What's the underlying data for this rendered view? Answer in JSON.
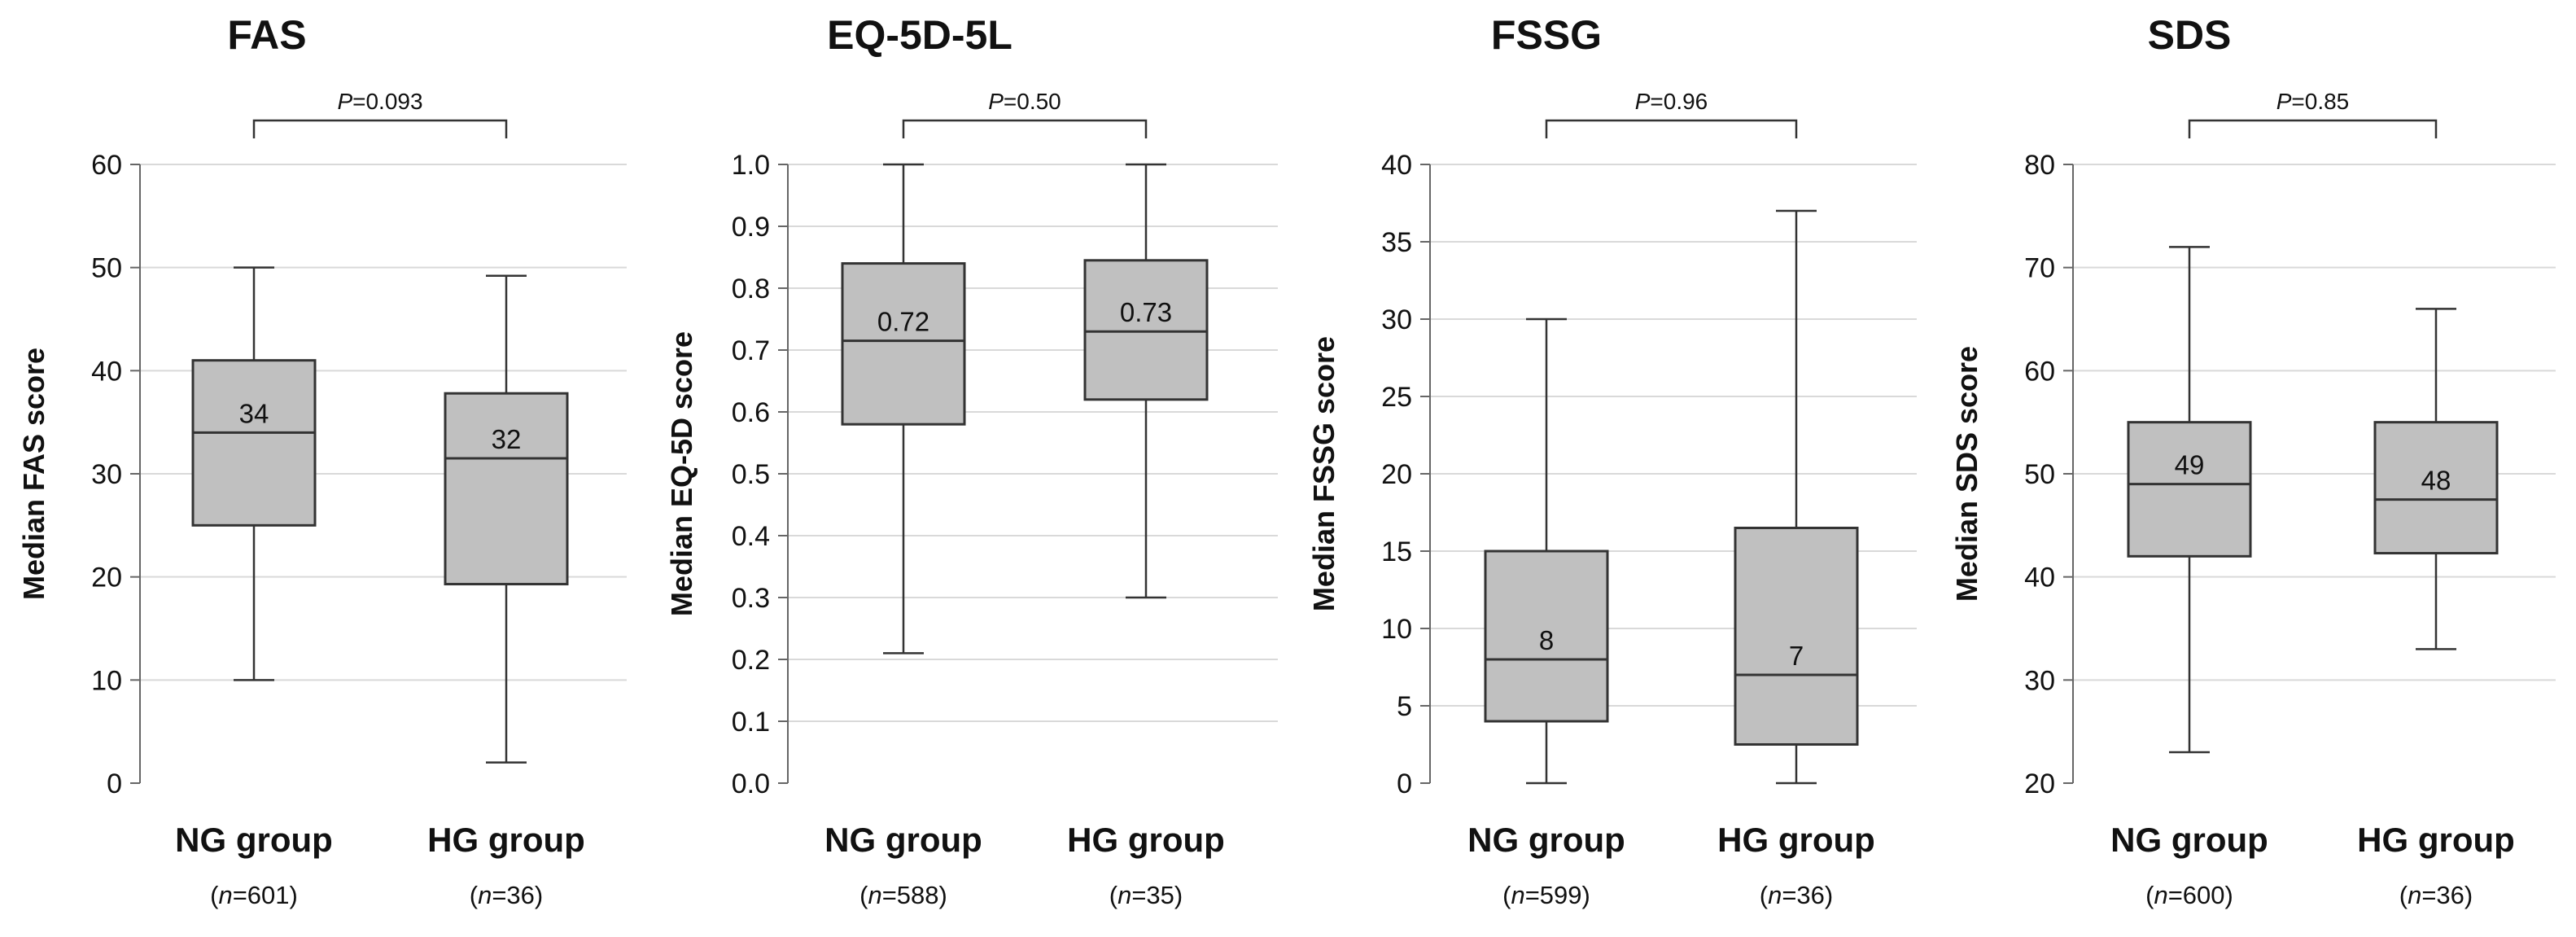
{
  "chart_data": [
    {
      "type": "boxplot",
      "title": "FAS",
      "ylabel": "Median FAS score",
      "ylim": [
        0,
        60
      ],
      "yticks": [
        "0",
        "10",
        "20",
        "30",
        "40",
        "50",
        "60"
      ],
      "grid": true,
      "p_value": {
        "prefix": "P",
        "text": "=0.093"
      },
      "groups": [
        {
          "label": "NG group",
          "n_prefix": "(",
          "n_var": "n",
          "n_text": "=601)",
          "min": 10,
          "q1": 25,
          "median": 34,
          "q3": 41,
          "max": 50,
          "median_label": "34"
        },
        {
          "label": "HG group",
          "n_prefix": "(",
          "n_var": "n",
          "n_text": "=36)",
          "min": 2,
          "q1": 19.3,
          "median": 31.5,
          "q3": 37.8,
          "max": 49.2,
          "median_label": "32"
        }
      ]
    },
    {
      "type": "boxplot",
      "title": "EQ-5D-5L",
      "ylabel": "Median EQ-5D score",
      "ylim": [
        0,
        1.0
      ],
      "yticks": [
        "0.0",
        "0.1",
        "0.2",
        "0.3",
        "0.4",
        "0.5",
        "0.6",
        "0.7",
        "0.8",
        "0.9",
        "1.0"
      ],
      "grid": true,
      "p_value": {
        "prefix": "P",
        "text": "=0.50"
      },
      "groups": [
        {
          "label": "NG group",
          "n_prefix": "(",
          "n_var": "n",
          "n_text": "=588)",
          "min": 0.21,
          "q1": 0.58,
          "median": 0.715,
          "q3": 0.84,
          "max": 1.0,
          "median_label": "0.72"
        },
        {
          "label": "HG group",
          "n_prefix": "(",
          "n_var": "n",
          "n_text": "=35)",
          "min": 0.3,
          "q1": 0.62,
          "median": 0.73,
          "q3": 0.845,
          "max": 1.0,
          "median_label": "0.73"
        }
      ]
    },
    {
      "type": "boxplot",
      "title": "FSSG",
      "ylabel": "Median FSSG score",
      "ylim": [
        0,
        40
      ],
      "yticks": [
        "0",
        "5",
        "10",
        "15",
        "20",
        "25",
        "30",
        "35",
        "40"
      ],
      "grid": true,
      "p_value": {
        "prefix": "P",
        "text": "=0.96"
      },
      "groups": [
        {
          "label": "NG group",
          "n_prefix": "(",
          "n_var": "n",
          "n_text": "=599)",
          "min": 0,
          "q1": 4,
          "median": 8,
          "q3": 15,
          "max": 30,
          "median_label": "8"
        },
        {
          "label": "HG group",
          "n_prefix": "(",
          "n_var": "n",
          "n_text": "=36)",
          "min": 0,
          "q1": 2.5,
          "median": 7,
          "q3": 16.5,
          "max": 37,
          "median_label": "7"
        }
      ]
    },
    {
      "type": "boxplot",
      "title": "SDS",
      "ylabel": "Median SDS score",
      "ylim": [
        20,
        80
      ],
      "yticks": [
        "20",
        "30",
        "40",
        "50",
        "60",
        "70",
        "80"
      ],
      "grid": true,
      "p_value": {
        "prefix": "P",
        "text": "=0.85"
      },
      "groups": [
        {
          "label": "NG group",
          "n_prefix": "(",
          "n_var": "n",
          "n_text": "=600)",
          "min": 23,
          "q1": 42,
          "median": 49,
          "q3": 55,
          "max": 72,
          "median_label": "49"
        },
        {
          "label": "HG group",
          "n_prefix": "(",
          "n_var": "n",
          "n_text": "=36)",
          "min": 33,
          "q1": 42.3,
          "median": 47.5,
          "q3": 55,
          "max": 66,
          "median_label": "48"
        }
      ]
    }
  ],
  "colors": {
    "box_fill": "#c0c0c0",
    "box_stroke": "#333333",
    "grid": "#d9d9d9",
    "axis": "#666666",
    "text": "#111111"
  }
}
